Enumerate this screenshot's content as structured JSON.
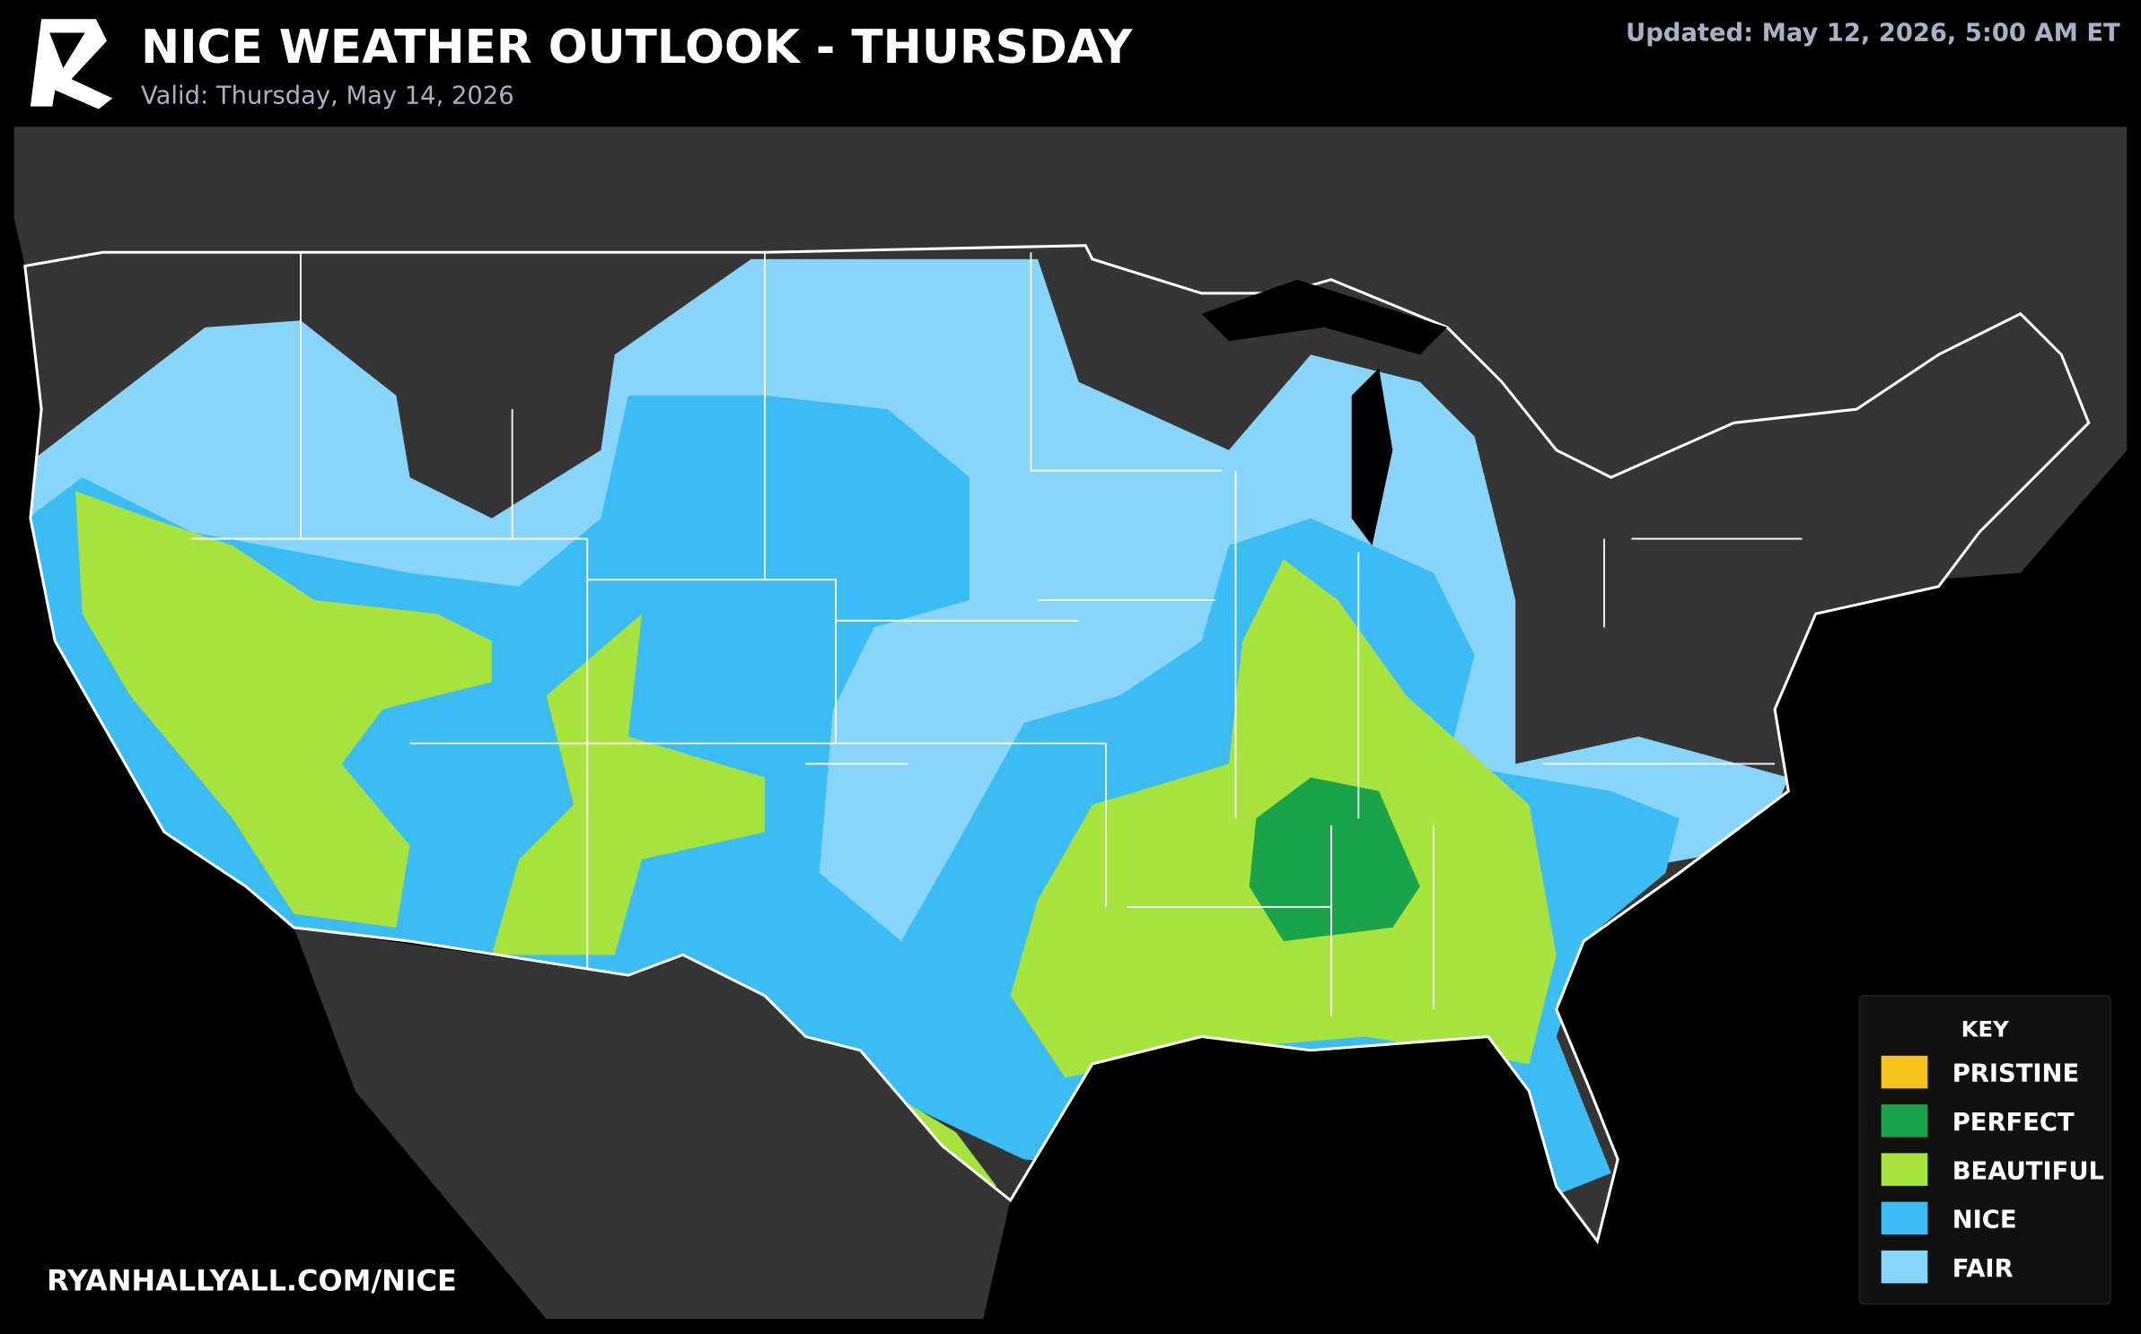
{
  "header": {
    "title": "NICE WEATHER OUTLOOK - THURSDAY",
    "subtitle": "Valid: Thursday, May 14, 2026",
    "updated": "Updated: May 12, 2026, 5:00 AM ET"
  },
  "legend": {
    "title": "KEY",
    "items": [
      {
        "label": "PRISTINE",
        "color": "#f8c31b"
      },
      {
        "label": "PERFECT",
        "color": "#1ba34a"
      },
      {
        "label": "BEAUTIFUL",
        "color": "#a6e33c"
      },
      {
        "label": "NICE",
        "color": "#3bbcf5"
      },
      {
        "label": "FAIR",
        "color": "#88d5fb"
      }
    ]
  },
  "footer": {
    "url": "RYANHALLYALL.COM/NICE"
  }
}
